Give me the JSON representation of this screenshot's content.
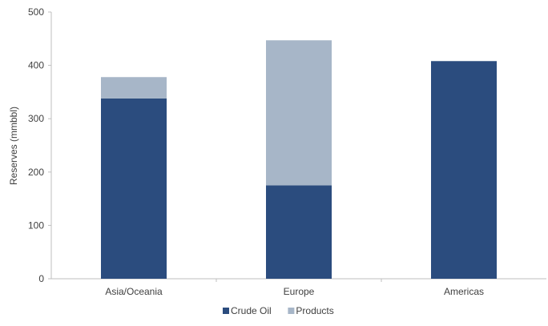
{
  "chart_data": {
    "type": "bar",
    "stacked": true,
    "categories": [
      "Asia/Oceania",
      "Europe",
      "Americas"
    ],
    "series": [
      {
        "name": "Crude Oil",
        "values": [
          338,
          175,
          408
        ],
        "color": "#2b4c7e"
      },
      {
        "name": "Products",
        "values": [
          40,
          272,
          0
        ],
        "color": "#a7b6c8"
      }
    ],
    "title": "",
    "xlabel": "",
    "ylabel": "Reserves (mmbbl)",
    "ylim": [
      0,
      500
    ],
    "yticks": [
      "0",
      "100",
      "200",
      "300",
      "400",
      "500"
    ],
    "grid": false,
    "legend": "bottom"
  }
}
